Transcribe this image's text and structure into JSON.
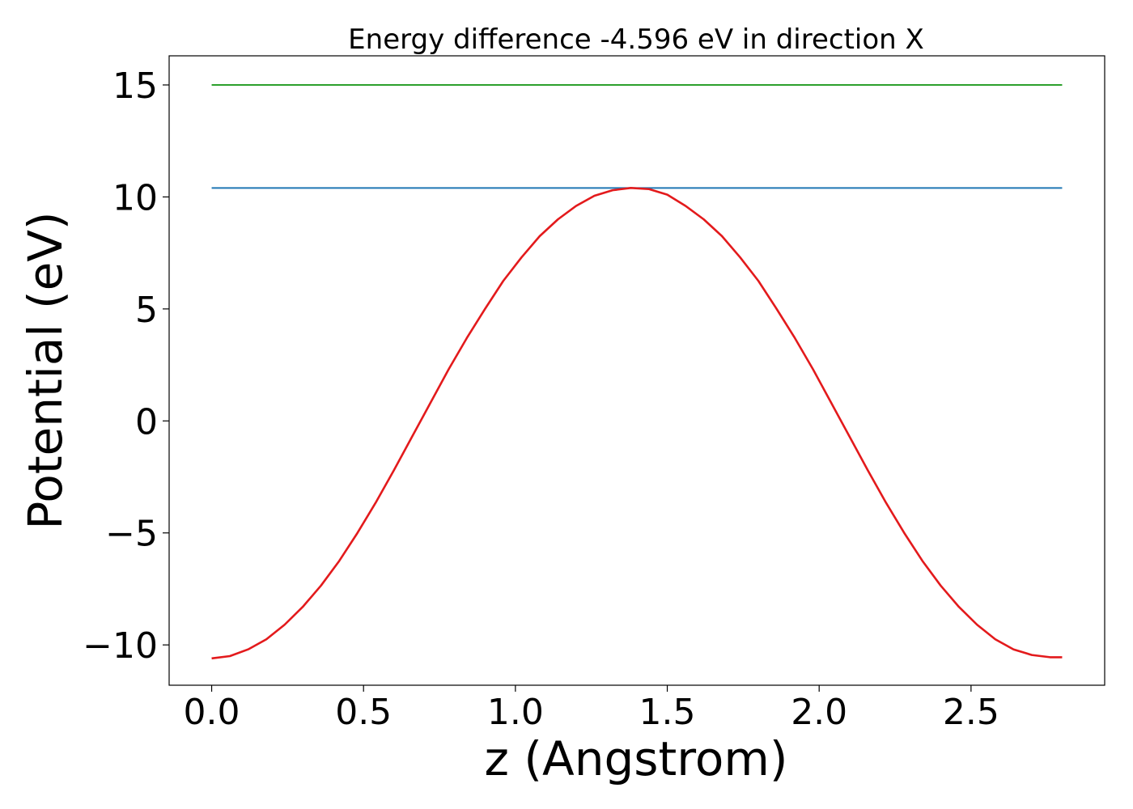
{
  "chart_data": {
    "type": "line",
    "title": "Energy difference -4.596 eV in direction X",
    "xlabel": "z (Angstrom)",
    "ylabel": "Potential (eV)",
    "xlim": [
      -0.14,
      2.94
    ],
    "ylim": [
      -11.8,
      16.3
    ],
    "xticks": [
      0.0,
      0.5,
      1.0,
      1.5,
      2.0,
      2.5
    ],
    "xtick_labels": [
      "0.0",
      "0.5",
      "1.0",
      "1.5",
      "2.0",
      "2.5"
    ],
    "yticks": [
      -10,
      -5,
      0,
      5,
      10,
      15
    ],
    "ytick_labels": [
      "−10",
      "−5",
      "0",
      "5",
      "10",
      "15"
    ],
    "grid": false,
    "series": [
      {
        "color": "#2ca02c",
        "x": [
          0.0,
          2.8
        ],
        "y": [
          15.0,
          15.0
        ]
      },
      {
        "color": "#1f77b4",
        "x": [
          0.0,
          2.8
        ],
        "y": [
          10.4,
          10.4
        ]
      },
      {
        "color": "#e31a1c",
        "x": [
          0.0,
          0.06,
          0.12,
          0.18,
          0.24,
          0.3,
          0.36,
          0.42,
          0.48,
          0.54,
          0.6,
          0.66,
          0.72,
          0.78,
          0.84,
          0.9,
          0.96,
          1.02,
          1.08,
          1.14,
          1.2,
          1.26,
          1.32,
          1.38,
          1.44,
          1.5,
          1.56,
          1.62,
          1.68,
          1.74,
          1.8,
          1.86,
          1.92,
          1.98,
          2.04,
          2.1,
          2.16,
          2.22,
          2.28,
          2.34,
          2.4,
          2.46,
          2.52,
          2.58,
          2.64,
          2.7,
          2.76,
          2.8
        ],
        "y": [
          -10.6,
          -10.5,
          -10.2,
          -9.75,
          -9.1,
          -8.3,
          -7.35,
          -6.25,
          -5.0,
          -3.65,
          -2.2,
          -0.7,
          0.8,
          2.3,
          3.7,
          5.0,
          6.25,
          7.3,
          8.25,
          9.0,
          9.6,
          10.05,
          10.3,
          10.4,
          10.35,
          10.1,
          9.6,
          9.0,
          8.25,
          7.3,
          6.25,
          5.0,
          3.7,
          2.3,
          0.8,
          -0.7,
          -2.2,
          -3.65,
          -5.0,
          -6.25,
          -7.35,
          -8.3,
          -9.1,
          -9.75,
          -10.2,
          -10.45,
          -10.55,
          -10.55
        ]
      }
    ]
  }
}
